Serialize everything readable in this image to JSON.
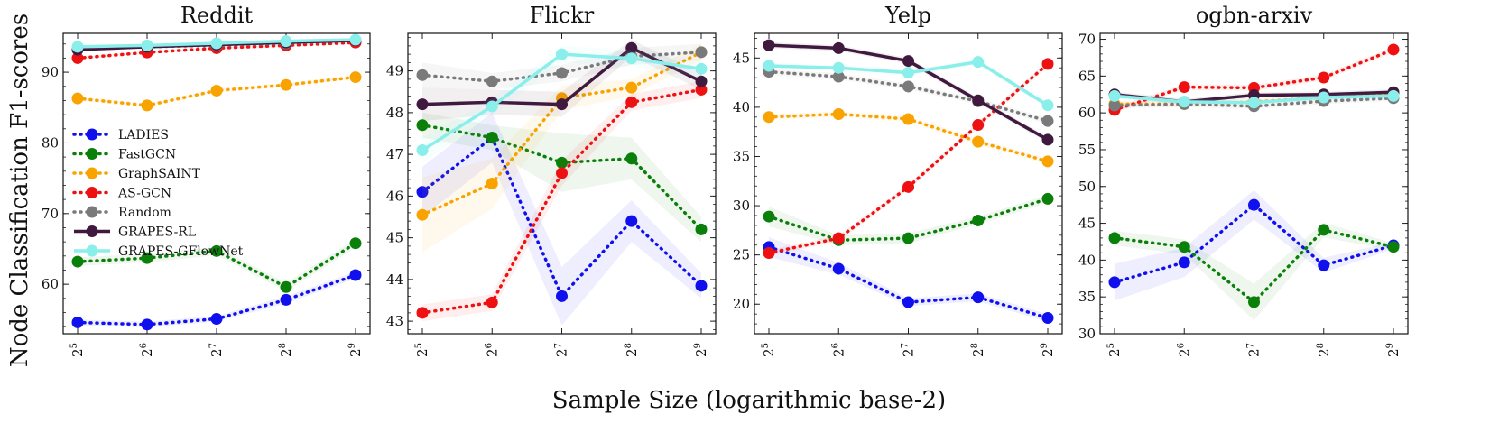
{
  "chart_data": {
    "type": "line",
    "ylabel": "Node Classification F1-scores",
    "xlabel": "Sample Size (logarithmic base-2)",
    "x": [
      5,
      6,
      7,
      8,
      9
    ],
    "x_tick_base": "2",
    "x_tick_exponents": [
      "5",
      "6",
      "7",
      "8",
      "9"
    ],
    "legend": {
      "placement": "inside first panel, left-center",
      "entries": [
        "LADIES",
        "FastGCN",
        "GraphSAINT",
        "AS-GCN",
        "Random",
        "GRAPES-RL",
        "GRAPES-GFlowNet"
      ]
    },
    "series_style": {
      "LADIES": {
        "color": "#1010ee",
        "dashed": true
      },
      "FastGCN": {
        "color": "#0a800a",
        "dashed": true
      },
      "GraphSAINT": {
        "color": "#f8a300",
        "dashed": true
      },
      "AS-GCN": {
        "color": "#ee1111",
        "dashed": true
      },
      "Random": {
        "color": "#7a7a7a",
        "dashed": true
      },
      "GRAPES-RL": {
        "color": "#40193f",
        "dashed": false
      },
      "GRAPES-GFlowNet": {
        "color": "#8aeeea",
        "dashed": false
      }
    },
    "panels": [
      {
        "title": "Reddit",
        "ylim": [
          53,
          95.5
        ],
        "yticks": [
          60,
          70,
          80,
          90
        ],
        "series": [
          {
            "name": "LADIES",
            "values": [
              54.6,
              54.3,
              55.1,
              57.8,
              61.3
            ],
            "band": [
              0.4,
              0.4,
              0.4,
              0.5,
              0.5
            ]
          },
          {
            "name": "FastGCN",
            "values": [
              63.2,
              63.7,
              64.7,
              59.6,
              65.8
            ],
            "band": [
              0.6,
              0.6,
              0.6,
              0.6,
              0.6
            ]
          },
          {
            "name": "GraphSAINT",
            "values": [
              86.3,
              85.3,
              87.4,
              88.2,
              89.3
            ],
            "band": [
              0.3,
              0.3,
              0.3,
              0.3,
              0.3
            ]
          },
          {
            "name": "AS-GCN",
            "values": [
              92.0,
              92.8,
              93.4,
              93.8,
              94.2
            ],
            "band": [
              0.2,
              0.2,
              0.2,
              0.2,
              0.2
            ]
          },
          {
            "name": "Random",
            "values": [
              93.3,
              93.6,
              93.8,
              94.1,
              94.5
            ],
            "band": [
              0.2,
              0.2,
              0.2,
              0.2,
              0.2
            ]
          },
          {
            "name": "GRAPES-RL",
            "values": [
              93.2,
              93.6,
              93.9,
              94.2,
              94.5
            ],
            "band": [
              0.2,
              0.2,
              0.2,
              0.2,
              0.2
            ]
          },
          {
            "name": "GRAPES-GFlowNet",
            "values": [
              93.6,
              93.8,
              94.1,
              94.4,
              94.6
            ],
            "band": [
              0.2,
              0.2,
              0.2,
              0.2,
              0.2
            ]
          }
        ]
      },
      {
        "title": "Flickr",
        "ylim": [
          42.7,
          49.9
        ],
        "yticks": [
          43,
          44,
          45,
          46,
          47,
          48,
          49
        ],
        "series": [
          {
            "name": "LADIES",
            "values": [
              46.1,
              47.4,
              43.6,
              45.4,
              43.85
            ],
            "band": [
              0.6,
              0.6,
              0.7,
              0.5,
              0.3
            ]
          },
          {
            "name": "FastGCN",
            "values": [
              47.7,
              47.4,
              46.8,
              46.9,
              45.2
            ],
            "band": [
              0.3,
              0.3,
              0.7,
              0.5,
              0.3
            ]
          },
          {
            "name": "GraphSAINT",
            "values": [
              45.55,
              46.3,
              48.35,
              48.6,
              49.45
            ],
            "band": [
              0.9,
              0.6,
              0.3,
              0.2,
              0.2
            ]
          },
          {
            "name": "AS-GCN",
            "values": [
              43.2,
              43.45,
              46.55,
              48.25,
              48.55
            ],
            "band": [
              0.2,
              0.2,
              0.3,
              0.2,
              0.2
            ]
          },
          {
            "name": "Random",
            "values": [
              48.9,
              48.75,
              48.95,
              49.35,
              49.45
            ],
            "band": [
              0.3,
              0.2,
              0.2,
              0.2,
              0.2
            ]
          },
          {
            "name": "GRAPES-RL",
            "values": [
              48.2,
              48.25,
              48.2,
              49.55,
              48.75
            ],
            "band": [
              0.4,
              0.3,
              0.3,
              0.2,
              0.2
            ]
          },
          {
            "name": "GRAPES-GFlowNet",
            "values": [
              47.1,
              48.15,
              49.4,
              49.3,
              49.05
            ],
            "band": [
              0.3,
              0.2,
              0.2,
              0.2,
              0.2
            ]
          }
        ]
      },
      {
        "title": "Yelp",
        "ylim": [
          17,
          47.5
        ],
        "yticks": [
          20,
          25,
          30,
          35,
          40,
          45
        ],
        "series": [
          {
            "name": "LADIES",
            "values": [
              25.8,
              23.6,
              20.2,
              20.7,
              18.6
            ],
            "band": [
              1.0,
              0.6,
              0.4,
              0.4,
              0.4
            ]
          },
          {
            "name": "FastGCN",
            "values": [
              28.9,
              26.5,
              26.7,
              28.5,
              30.7
            ],
            "band": [
              1.0,
              0.5,
              0.5,
              0.4,
              0.4
            ]
          },
          {
            "name": "GraphSAINT",
            "values": [
              39.0,
              39.3,
              38.8,
              36.5,
              34.5
            ],
            "band": [
              0.3,
              0.3,
              0.3,
              0.3,
              0.3
            ]
          },
          {
            "name": "AS-GCN",
            "values": [
              25.2,
              26.7,
              31.9,
              38.2,
              44.4
            ],
            "band": [
              0.3,
              0.3,
              0.3,
              0.3,
              0.3
            ]
          },
          {
            "name": "Random",
            "values": [
              43.6,
              43.1,
              42.1,
              40.6,
              38.6
            ],
            "band": [
              0.3,
              0.3,
              0.3,
              0.3,
              0.3
            ]
          },
          {
            "name": "GRAPES-RL",
            "values": [
              46.3,
              46.0,
              44.7,
              40.7,
              36.7
            ],
            "band": [
              0.3,
              0.3,
              0.3,
              0.3,
              0.3
            ]
          },
          {
            "name": "GRAPES-GFlowNet",
            "values": [
              44.2,
              44.0,
              43.5,
              44.6,
              40.2
            ],
            "band": [
              0.3,
              0.3,
              0.3,
              0.3,
              0.3
            ]
          }
        ]
      },
      {
        "title": "ogbn-arxiv",
        "ylim": [
          30,
          70.8
        ],
        "yticks": [
          30,
          35,
          40,
          45,
          50,
          55,
          60,
          65,
          70
        ],
        "series": [
          {
            "name": "LADIES",
            "values": [
              37.0,
              39.7,
              47.5,
              39.3,
              42.0
            ],
            "band": [
              2.5,
              2.0,
              2.0,
              1.0,
              0.5
            ]
          },
          {
            "name": "FastGCN",
            "values": [
              43.0,
              41.8,
              34.3,
              44.1,
              41.8
            ],
            "band": [
              1.0,
              1.0,
              2.5,
              1.0,
              0.5
            ]
          },
          {
            "name": "GraphSAINT",
            "values": [
              61.2,
              61.2,
              61.5,
              62.1,
              62.6
            ],
            "band": [
              0.4,
              0.4,
              0.4,
              0.4,
              0.4
            ]
          },
          {
            "name": "AS-GCN",
            "values": [
              60.4,
              63.5,
              63.4,
              64.8,
              68.6
            ],
            "band": [
              0.4,
              0.4,
              0.4,
              0.4,
              0.4
            ]
          },
          {
            "name": "Random",
            "values": [
              61.0,
              61.2,
              60.9,
              61.6,
              62.0
            ],
            "band": [
              0.4,
              0.4,
              0.4,
              0.4,
              0.4
            ]
          },
          {
            "name": "GRAPES-RL",
            "values": [
              62.5,
              61.5,
              62.4,
              62.5,
              62.8
            ],
            "band": [
              0.4,
              0.4,
              0.4,
              0.4,
              0.4
            ]
          },
          {
            "name": "GRAPES-GFlowNet",
            "values": [
              62.3,
              61.5,
              61.4,
              62.1,
              62.3
            ],
            "band": [
              0.4,
              0.4,
              0.4,
              0.4,
              0.4
            ]
          }
        ]
      }
    ]
  }
}
